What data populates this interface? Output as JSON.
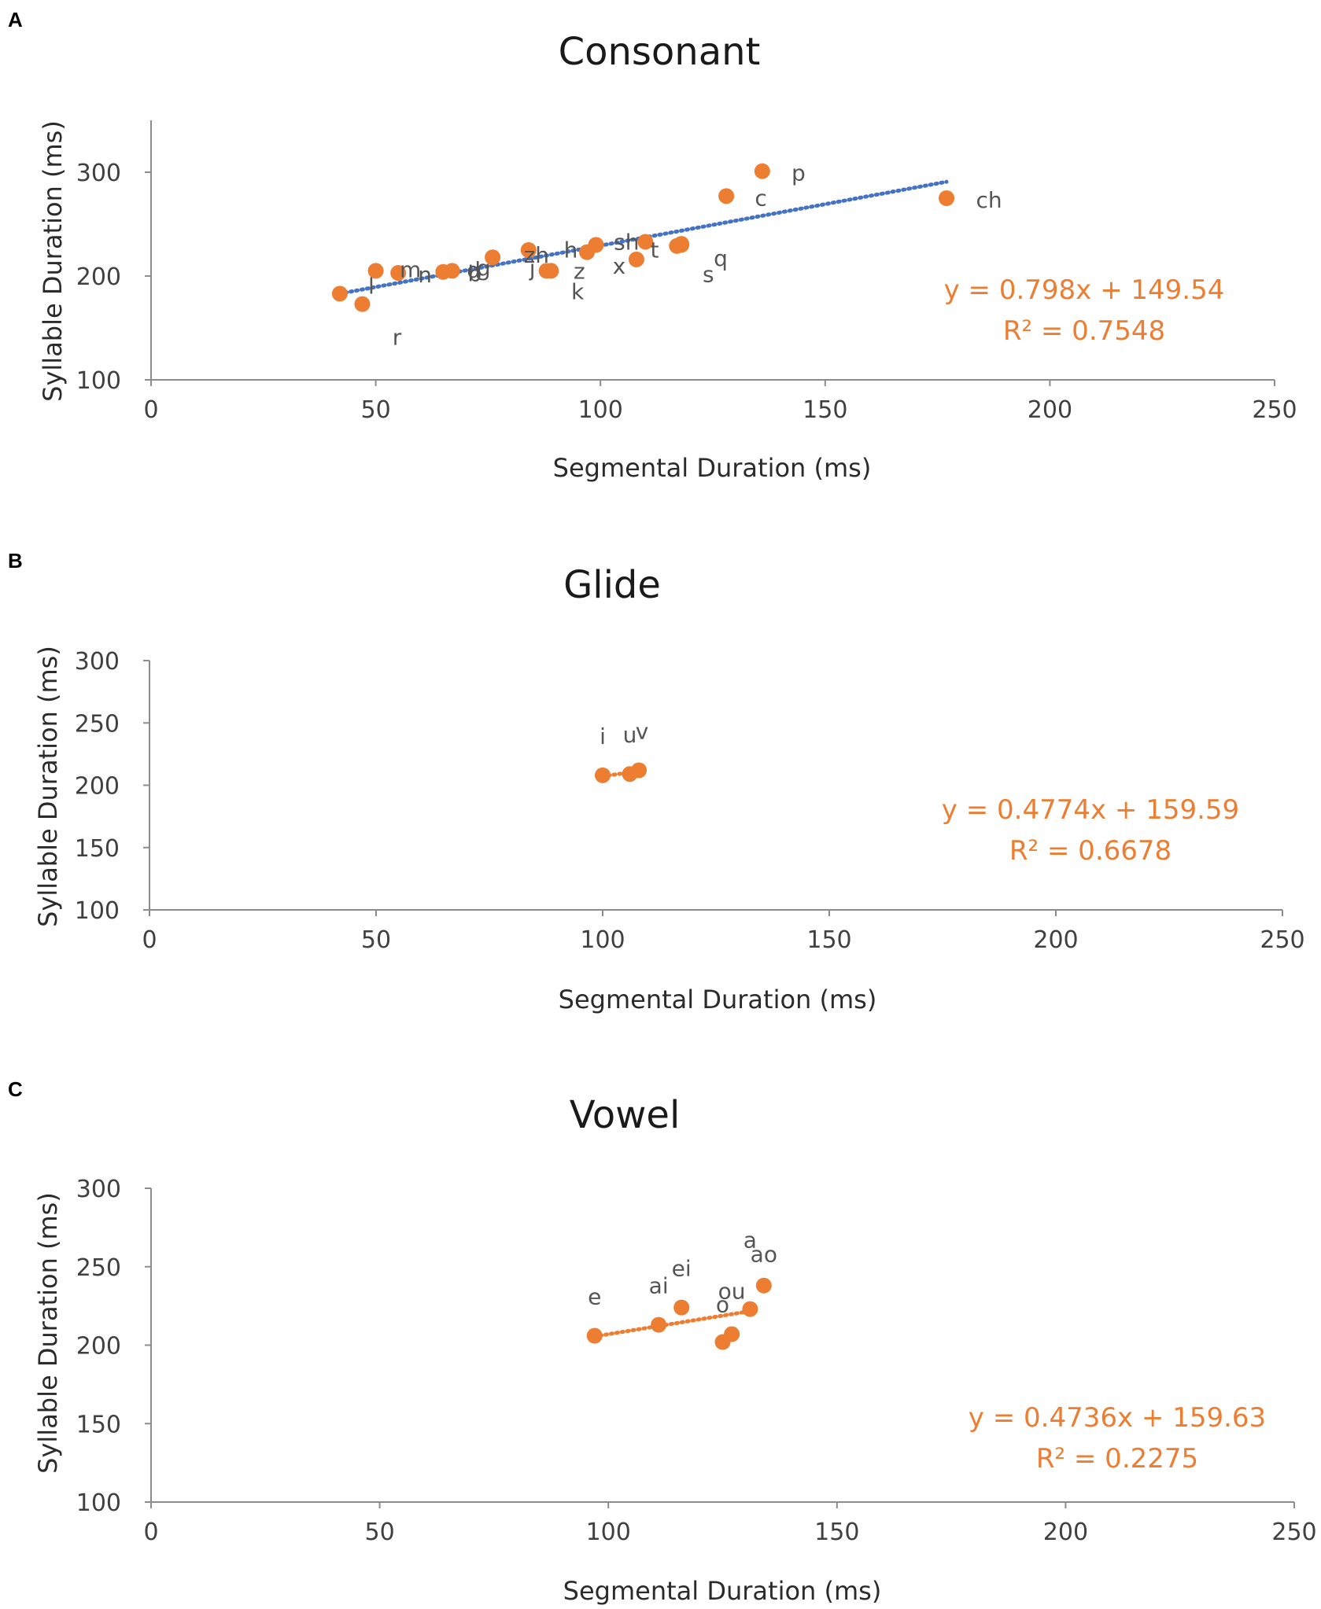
{
  "colors": {
    "point": "#ed7d31",
    "consonant_trend": "#4472c4",
    "equation": "#ed7d31",
    "axis": "#8c8c8c"
  },
  "chart_data": [
    {
      "panel": "A",
      "type": "scatter",
      "title": "Consonant",
      "xlabel": "Segmental Duration (ms)",
      "ylabel": "Syllable Duration (ms)",
      "xlim": [
        0,
        250
      ],
      "ylim": [
        100,
        350
      ],
      "xticks": [
        0,
        50,
        100,
        150,
        200,
        250
      ],
      "yticks": [
        100,
        200,
        300
      ],
      "trendline": {
        "slope": 0.798,
        "intercept": 149.54,
        "x_range": [
          42,
          177
        ],
        "style": "dotted",
        "color": "#4472c4"
      },
      "equation": "y = 0.798x + 149.54",
      "r2": "R² = 0.7548",
      "points": [
        {
          "label": "l",
          "x": 42,
          "y": 183
        },
        {
          "label": "r",
          "x": 47,
          "y": 173
        },
        {
          "label": "m",
          "x": 50,
          "y": 205
        },
        {
          "label": "n",
          "x": 55,
          "y": 203
        },
        {
          "label": "b",
          "x": 65,
          "y": 204
        },
        {
          "label": "g",
          "x": 67,
          "y": 205
        },
        {
          "label": "d",
          "x": 76,
          "y": 218
        },
        {
          "label": "zh",
          "x": 84,
          "y": 225
        },
        {
          "label": "j",
          "x": 88,
          "y": 205
        },
        {
          "label": "z",
          "x": 89,
          "y": 205
        },
        {
          "label": "h",
          "x": 99,
          "y": 230
        },
        {
          "label": "k",
          "x": 97,
          "y": 223
        },
        {
          "label": "x",
          "x": 108,
          "y": 216
        },
        {
          "label": "sh",
          "x": 110,
          "y": 233
        },
        {
          "label": "t",
          "x": 118,
          "y": 230
        },
        {
          "label": "s",
          "x": 117,
          "y": 229
        },
        {
          "label": "c",
          "x": 128,
          "y": 277
        },
        {
          "label": "p",
          "x": 136,
          "y": 301
        },
        {
          "label": "q",
          "x": 118,
          "y": 231
        },
        {
          "label": "ch",
          "x": 177,
          "y": 275
        }
      ],
      "text_labels": [
        "l",
        "r",
        "m",
        "n",
        "g",
        "b",
        "d",
        "zh",
        "j",
        "h",
        "k",
        "z",
        "x",
        "sh",
        "t",
        "s",
        "q",
        "c",
        "p",
        "ch"
      ]
    },
    {
      "panel": "B",
      "type": "scatter",
      "title": "Glide",
      "xlabel": "Segmental Duration (ms)",
      "ylabel": "Syllable Duration (ms)",
      "xlim": [
        0,
        250
      ],
      "ylim": [
        100,
        300
      ],
      "xticks": [
        0,
        50,
        100,
        150,
        200,
        250
      ],
      "yticks": [
        100,
        150,
        200,
        250,
        300
      ],
      "trendline": {
        "slope": 0.4774,
        "intercept": 159.59,
        "x_range": [
          100,
          108
        ],
        "style": "dotted",
        "color": "#ed7d31"
      },
      "equation": "y = 0.4774x + 159.59",
      "r2": "R² = 0.6678",
      "points": [
        {
          "label": "i",
          "x": 100,
          "y": 208
        },
        {
          "label": "u",
          "x": 106,
          "y": 209
        },
        {
          "label": "v",
          "x": 108,
          "y": 212
        }
      ]
    },
    {
      "panel": "C",
      "type": "scatter",
      "title": "Vowel",
      "xlabel": "Segmental Duration (ms)",
      "ylabel": "Syllable Duration (ms)",
      "xlim": [
        0,
        250
      ],
      "ylim": [
        100,
        300
      ],
      "xticks": [
        0,
        50,
        100,
        150,
        200,
        250
      ],
      "yticks": [
        100,
        150,
        200,
        250,
        300
      ],
      "trendline": {
        "slope": 0.4736,
        "intercept": 159.63,
        "x_range": [
          97,
          131
        ],
        "style": "dotted",
        "color": "#ed7d31"
      },
      "equation": "y = 0.4736x + 159.63",
      "r2": "R² = 0.2275",
      "points": [
        {
          "label": "e",
          "x": 97,
          "y": 206
        },
        {
          "label": "ai",
          "x": 111,
          "y": 213
        },
        {
          "label": "ei",
          "x": 116,
          "y": 224
        },
        {
          "label": "o",
          "x": 125,
          "y": 202
        },
        {
          "label": "ou",
          "x": 127,
          "y": 207
        },
        {
          "label": "a",
          "x": 131,
          "y": 223
        },
        {
          "label": "ao",
          "x": 134,
          "y": 238
        }
      ]
    }
  ]
}
